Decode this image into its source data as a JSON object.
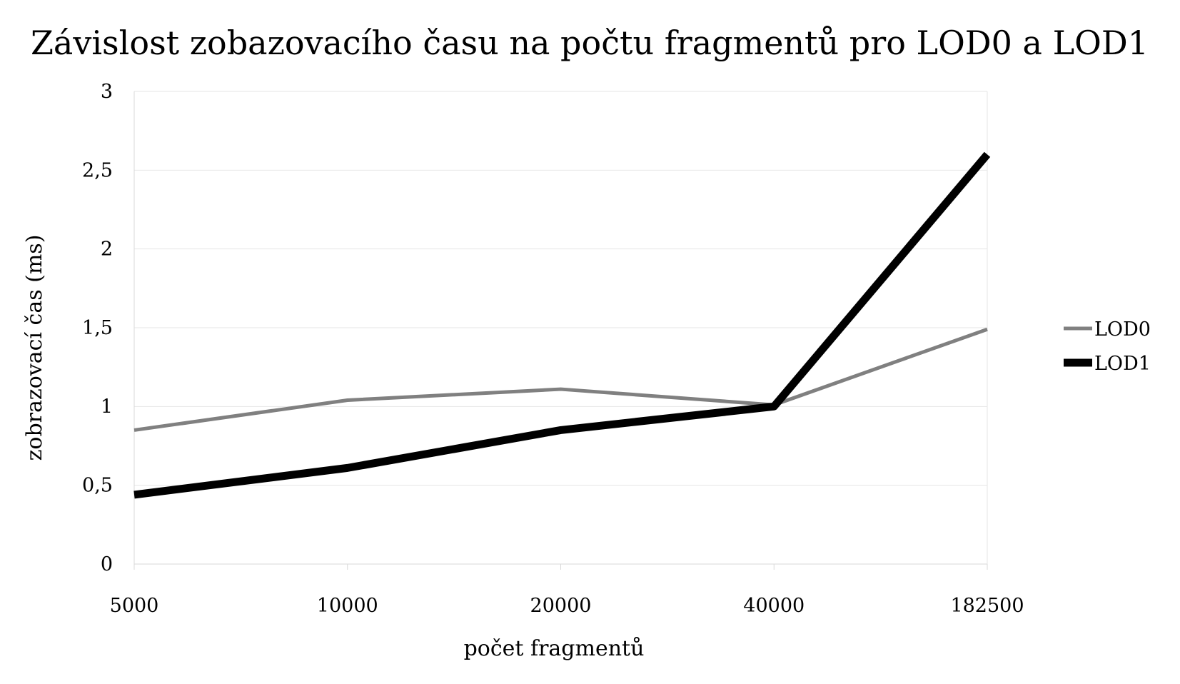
{
  "chart_data": {
    "type": "line",
    "title": "Závislost zobazovacího času na počtu fragmentů pro LOD0 a LOD1",
    "xlabel": "počet fragmentů",
    "ylabel": "zobrazovací čas (ms)",
    "categories": [
      "5000",
      "10000",
      "20000",
      "40000",
      "182500"
    ],
    "ylim": [
      0,
      3
    ],
    "yticks": [
      0,
      0.5,
      1,
      1.5,
      2,
      2.5,
      3
    ],
    "ytick_labels": [
      "0",
      "0,5",
      "1",
      "1,5",
      "2",
      "2,5",
      "3"
    ],
    "grid": true,
    "legend_position": "right",
    "series": [
      {
        "name": "LOD0",
        "values": [
          0.85,
          1.04,
          1.11,
          1.01,
          1.49
        ],
        "color": "#808080",
        "style": "thin"
      },
      {
        "name": "LOD1",
        "values": [
          0.44,
          0.61,
          0.85,
          1.0,
          2.6
        ],
        "color": "#000000",
        "style": "thick"
      }
    ]
  }
}
